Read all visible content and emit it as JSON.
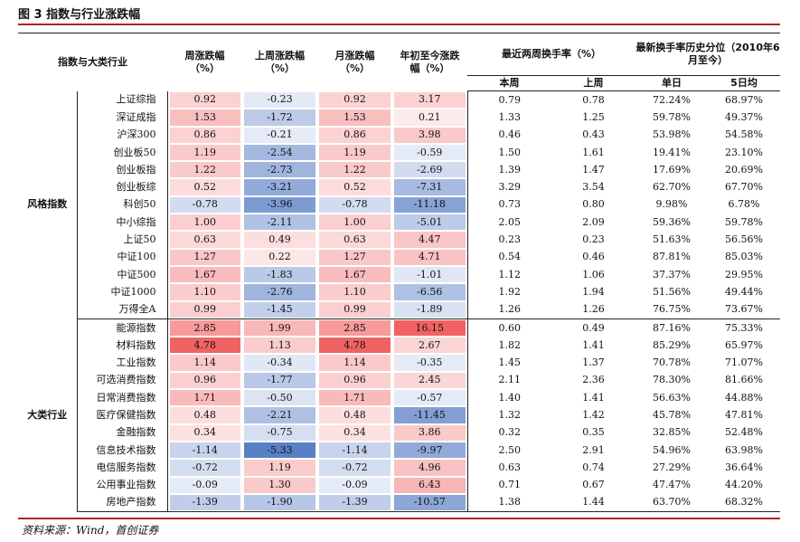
{
  "title": "图 3 指数与行业涨跌幅",
  "source": "资料来源：Wind，首创证券",
  "headers": {
    "group_col": "指数与大类行业",
    "weekly": "周涨跌幅（%）",
    "prev_week": "上周涨跌幅（%）",
    "monthly": "月涨跌幅（%）",
    "ytd": "年初至今涨跌幅（%）",
    "turnover": "最近两周换手率（%）",
    "turnover_this": "本周",
    "turnover_last": "上周",
    "percentile": "最新换手率历史分位（2010年6月至今）",
    "percentile_single": "单日",
    "percentile_5d": "5日均"
  },
  "colors": {
    "pos": "#f06060",
    "neg": "#5a7fc4",
    "rule": "#b22222"
  },
  "groups": [
    {
      "name": "风格指数",
      "rows": [
        {
          "name": "上证综指",
          "w": "0.92",
          "pw": "-0.23",
          "m": "0.92",
          "ytd": "3.17",
          "t1": "0.79",
          "t2": "0.78",
          "p1": "72.24%",
          "p5": "68.97%"
        },
        {
          "name": "深证成指",
          "w": "1.53",
          "pw": "-1.72",
          "m": "1.53",
          "ytd": "0.21",
          "t1": "1.33",
          "t2": "1.25",
          "p1": "59.78%",
          "p5": "49.37%"
        },
        {
          "name": "沪深300",
          "w": "0.86",
          "pw": "-0.21",
          "m": "0.86",
          "ytd": "3.98",
          "t1": "0.46",
          "t2": "0.43",
          "p1": "53.98%",
          "p5": "54.58%"
        },
        {
          "name": "创业板50",
          "w": "1.19",
          "pw": "-2.54",
          "m": "1.19",
          "ytd": "-0.59",
          "t1": "1.50",
          "t2": "1.61",
          "p1": "19.41%",
          "p5": "23.10%"
        },
        {
          "name": "创业板指",
          "w": "1.22",
          "pw": "-2.73",
          "m": "1.22",
          "ytd": "-2.69",
          "t1": "1.39",
          "t2": "1.47",
          "p1": "17.69%",
          "p5": "20.69%"
        },
        {
          "name": "创业板综",
          "w": "0.52",
          "pw": "-3.21",
          "m": "0.52",
          "ytd": "-7.31",
          "t1": "3.29",
          "t2": "3.54",
          "p1": "62.70%",
          "p5": "67.70%"
        },
        {
          "name": "科创50",
          "w": "-0.78",
          "pw": "-3.96",
          "m": "-0.78",
          "ytd": "-11.18",
          "t1": "0.73",
          "t2": "0.80",
          "p1": "9.98%",
          "p5": "6.78%"
        },
        {
          "name": "中小综指",
          "w": "1.00",
          "pw": "-2.11",
          "m": "1.00",
          "ytd": "-5.01",
          "t1": "2.05",
          "t2": "2.09",
          "p1": "59.36%",
          "p5": "59.78%"
        },
        {
          "name": "上证50",
          "w": "0.63",
          "pw": "0.49",
          "m": "0.63",
          "ytd": "4.47",
          "t1": "0.23",
          "t2": "0.23",
          "p1": "51.63%",
          "p5": "56.56%"
        },
        {
          "name": "中证100",
          "w": "1.27",
          "pw": "0.22",
          "m": "1.27",
          "ytd": "4.71",
          "t1": "0.54",
          "t2": "0.46",
          "p1": "87.81%",
          "p5": "85.03%"
        },
        {
          "name": "中证500",
          "w": "1.67",
          "pw": "-1.83",
          "m": "1.67",
          "ytd": "-1.01",
          "t1": "1.12",
          "t2": "1.06",
          "p1": "37.37%",
          "p5": "29.95%"
        },
        {
          "name": "中证1000",
          "w": "1.10",
          "pw": "-2.76",
          "m": "1.10",
          "ytd": "-6.56",
          "t1": "1.92",
          "t2": "1.94",
          "p1": "51.56%",
          "p5": "49.44%"
        },
        {
          "name": "万得全A",
          "w": "0.99",
          "pw": "-1.45",
          "m": "0.99",
          "ytd": "-1.89",
          "t1": "1.26",
          "t2": "1.26",
          "p1": "76.75%",
          "p5": "73.67%"
        }
      ]
    },
    {
      "name": "大类行业",
      "rows": [
        {
          "name": "能源指数",
          "w": "2.85",
          "pw": "1.99",
          "m": "2.85",
          "ytd": "16.15",
          "t1": "0.60",
          "t2": "0.49",
          "p1": "87.16%",
          "p5": "75.33%"
        },
        {
          "name": "材料指数",
          "w": "4.78",
          "pw": "1.13",
          "m": "4.78",
          "ytd": "2.67",
          "t1": "1.82",
          "t2": "1.41",
          "p1": "85.29%",
          "p5": "65.97%"
        },
        {
          "name": "工业指数",
          "w": "1.14",
          "pw": "-0.34",
          "m": "1.14",
          "ytd": "-0.35",
          "t1": "1.45",
          "t2": "1.37",
          "p1": "70.78%",
          "p5": "71.07%"
        },
        {
          "name": "可选消费指数",
          "w": "0.96",
          "pw": "-1.77",
          "m": "0.96",
          "ytd": "2.45",
          "t1": "2.11",
          "t2": "2.36",
          "p1": "78.30%",
          "p5": "81.66%"
        },
        {
          "name": "日常消费指数",
          "w": "1.71",
          "pw": "-0.50",
          "m": "1.71",
          "ytd": "-0.57",
          "t1": "1.40",
          "t2": "1.41",
          "p1": "56.63%",
          "p5": "44.88%"
        },
        {
          "name": "医疗保健指数",
          "w": "0.48",
          "pw": "-2.21",
          "m": "0.48",
          "ytd": "-11.45",
          "t1": "1.32",
          "t2": "1.42",
          "p1": "45.78%",
          "p5": "47.81%"
        },
        {
          "name": "金融指数",
          "w": "0.34",
          "pw": "-0.75",
          "m": "0.34",
          "ytd": "3.86",
          "t1": "0.32",
          "t2": "0.35",
          "p1": "32.85%",
          "p5": "52.48%"
        },
        {
          "name": "信息技术指数",
          "w": "-1.14",
          "pw": "-5.33",
          "m": "-1.14",
          "ytd": "-9.97",
          "t1": "2.50",
          "t2": "2.91",
          "p1": "54.96%",
          "p5": "63.98%"
        },
        {
          "name": "电信服务指数",
          "w": "-0.72",
          "pw": "1.19",
          "m": "-0.72",
          "ytd": "4.96",
          "t1": "0.63",
          "t2": "0.74",
          "p1": "27.29%",
          "p5": "36.64%"
        },
        {
          "name": "公用事业指数",
          "w": "-0.09",
          "pw": "1.30",
          "m": "-0.09",
          "ytd": "6.43",
          "t1": "0.71",
          "t2": "0.67",
          "p1": "47.47%",
          "p5": "44.20%"
        },
        {
          "name": "房地产指数",
          "w": "-1.39",
          "pw": "-1.90",
          "m": "-1.39",
          "ytd": "-10.57",
          "t1": "1.38",
          "t2": "1.44",
          "p1": "63.70%",
          "p5": "68.32%"
        }
      ]
    }
  ]
}
